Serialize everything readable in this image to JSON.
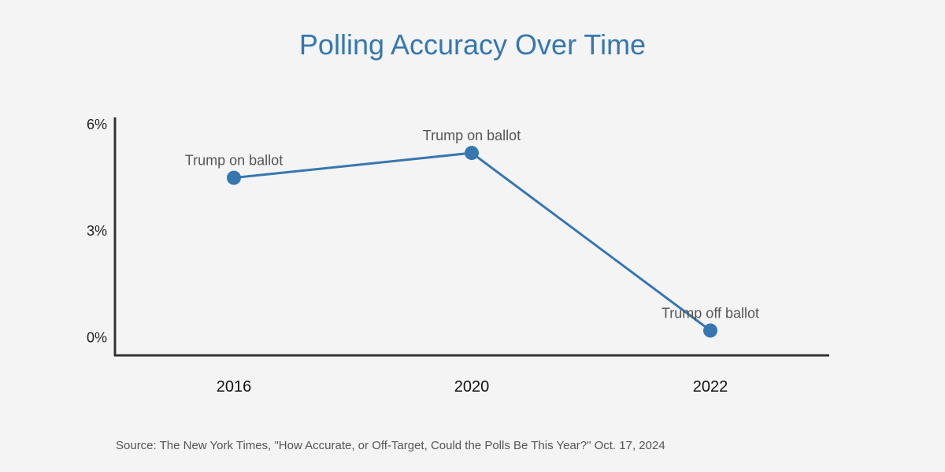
{
  "chart_data": {
    "type": "line",
    "title": "Polling Accuracy Over Time",
    "categories": [
      "2016",
      "2020",
      "2022"
    ],
    "series": [
      {
        "values": [
          4.5,
          5.2,
          0.2
        ]
      }
    ],
    "point_labels": [
      "Trump on ballot",
      "Trump on ballot",
      "Trump off ballot"
    ],
    "yticks": [
      "0%",
      "3%",
      "6%"
    ],
    "ytick_values": [
      0,
      3,
      6
    ],
    "ylim": [
      -0.5,
      6.2
    ],
    "grid": false,
    "line_color": "#3677b0",
    "title_color": "#3677b0",
    "source": "Source: The New York Times, \"How Accurate, or Off-Target, Could the Polls Be This Year?\" Oct. 17, 2024"
  }
}
